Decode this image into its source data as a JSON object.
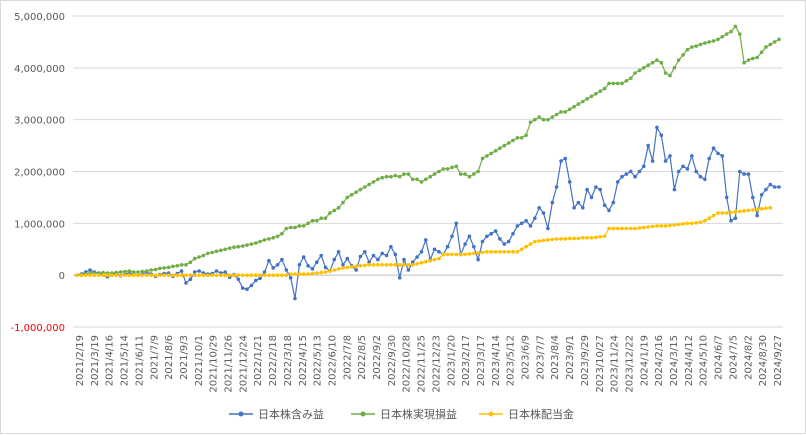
{
  "chart_data": {
    "type": "line",
    "title": "",
    "xlabel": "",
    "ylabel": "",
    "ylim": [
      -1000000,
      5000000
    ],
    "y_ticks": [
      {
        "value": 5000000,
        "label": "5,000,000"
      },
      {
        "value": 4000000,
        "label": "4,000,000"
      },
      {
        "value": 3000000,
        "label": "3,000,000"
      },
      {
        "value": 2000000,
        "label": "2,000,000"
      },
      {
        "value": 1000000,
        "label": "1,000,000"
      },
      {
        "value": 0,
        "label": "0"
      },
      {
        "value": -1000000,
        "label": "-1,000,000"
      }
    ],
    "x_ticks": [
      "2021/2/19",
      "2021/3/19",
      "2021/4/16",
      "2021/5/14",
      "2021/6/11",
      "2021/7/9",
      "2021/8/6",
      "2021/9/3",
      "2021/10/1",
      "2021/10/29",
      "2021/11/26",
      "2021/12/24",
      "2022/1/21",
      "2022/2/18",
      "2022/3/18",
      "2022/4/15",
      "2022/5/13",
      "2022/6/10",
      "2022/7/8",
      "2022/8/5",
      "2022/9/2",
      "2022/9/30",
      "2022/10/28",
      "2022/11/25",
      "2022/12/23",
      "2023/1/20",
      "2023/2/17",
      "2023/3/17",
      "2023/4/14",
      "2023/5/12",
      "2023/6/9",
      "2023/7/7",
      "2023/8/4",
      "2023/9/1",
      "2023/9/29",
      "2023/10/27",
      "2023/11/24",
      "2023/12/22",
      "2024/1/19",
      "2024/2/16",
      "2024/3/15",
      "2024/4/12",
      "2024/5/10",
      "2024/6/7",
      "2024/7/5",
      "2024/8/2",
      "2024/8/30",
      "2024/9/27"
    ],
    "grid": true,
    "legend_position": "bottom",
    "series": [
      {
        "name": "日本株含み益",
        "color": "#4472c4",
        "values": [
          0,
          20000,
          60000,
          100000,
          60000,
          40000,
          0,
          -30000,
          10000,
          30000,
          -10000,
          20000,
          40000,
          10000,
          0,
          20000,
          60000,
          20000,
          -20000,
          10000,
          30000,
          40000,
          -20000,
          30000,
          80000,
          -150000,
          -80000,
          60000,
          80000,
          40000,
          20000,
          30000,
          80000,
          40000,
          60000,
          -40000,
          10000,
          -80000,
          -250000,
          -270000,
          -200000,
          -100000,
          -60000,
          60000,
          280000,
          140000,
          200000,
          300000,
          100000,
          -50000,
          -450000,
          200000,
          350000,
          180000,
          120000,
          250000,
          380000,
          150000,
          80000,
          300000,
          450000,
          200000,
          320000,
          180000,
          100000,
          360000,
          450000,
          250000,
          380000,
          300000,
          420000,
          380000,
          550000,
          400000,
          -50000,
          300000,
          100000,
          250000,
          350000,
          450000,
          680000,
          300000,
          500000,
          450000,
          400000,
          550000,
          750000,
          1000000,
          400000,
          600000,
          750000,
          550000,
          300000,
          650000,
          750000,
          800000,
          850000,
          700000,
          600000,
          650000,
          800000,
          950000,
          1000000,
          1050000,
          950000,
          1100000,
          1300000,
          1200000,
          900000,
          1400000,
          1700000,
          2200000,
          2250000,
          1800000,
          1300000,
          1400000,
          1300000,
          1650000,
          1500000,
          1700000,
          1650000,
          1350000,
          1250000,
          1400000,
          1800000,
          1900000,
          1950000,
          2000000,
          1900000,
          2000000,
          2100000,
          2500000,
          2200000,
          2850000,
          2700000,
          2200000,
          2300000,
          1650000,
          2000000,
          2100000,
          2050000,
          2300000,
          2000000,
          1900000,
          1850000,
          2250000,
          2450000,
          2350000,
          2300000,
          1500000,
          1050000,
          1100000,
          2000000,
          1950000,
          1950000,
          1500000,
          1150000,
          1550000,
          1650000,
          1750000,
          1700000,
          1700000
        ]
      },
      {
        "name": "日本株実現損益",
        "color": "#70ad47",
        "values": [
          0,
          0,
          20000,
          40000,
          40000,
          40000,
          50000,
          40000,
          40000,
          50000,
          60000,
          70000,
          80000,
          60000,
          60000,
          70000,
          80000,
          100000,
          110000,
          130000,
          140000,
          150000,
          170000,
          180000,
          200000,
          200000,
          250000,
          320000,
          350000,
          380000,
          420000,
          440000,
          460000,
          480000,
          500000,
          520000,
          540000,
          550000,
          560000,
          580000,
          600000,
          620000,
          650000,
          680000,
          700000,
          720000,
          750000,
          800000,
          900000,
          920000,
          920000,
          950000,
          950000,
          1000000,
          1050000,
          1050000,
          1100000,
          1100000,
          1200000,
          1250000,
          1300000,
          1400000,
          1500000,
          1550000,
          1600000,
          1650000,
          1700000,
          1750000,
          1800000,
          1850000,
          1880000,
          1900000,
          1900000,
          1920000,
          1900000,
          1950000,
          1950000,
          1850000,
          1850000,
          1800000,
          1850000,
          1900000,
          1950000,
          2000000,
          2050000,
          2050000,
          2080000,
          2100000,
          1950000,
          1950000,
          1900000,
          1950000,
          2000000,
          2250000,
          2300000,
          2350000,
          2400000,
          2450000,
          2500000,
          2550000,
          2600000,
          2650000,
          2650000,
          2700000,
          2950000,
          3000000,
          3050000,
          3000000,
          3000000,
          3050000,
          3100000,
          3150000,
          3150000,
          3200000,
          3250000,
          3300000,
          3350000,
          3400000,
          3450000,
          3500000,
          3550000,
          3600000,
          3700000,
          3700000,
          3700000,
          3700000,
          3750000,
          3800000,
          3900000,
          3950000,
          4000000,
          4050000,
          4100000,
          4150000,
          4100000,
          3900000,
          3850000,
          4000000,
          4150000,
          4250000,
          4350000,
          4400000,
          4420000,
          4450000,
          4480000,
          4500000,
          4520000,
          4550000,
          4600000,
          4650000,
          4700000,
          4800000,
          4650000,
          4100000,
          4150000,
          4180000,
          4200000,
          4300000,
          4400000,
          4450000,
          4500000,
          4550000
        ]
      },
      {
        "name": "日本株配当金",
        "color": "#ffc000",
        "values": [
          0,
          0,
          0,
          0,
          0,
          0,
          0,
          0,
          0,
          0,
          0,
          0,
          0,
          0,
          0,
          0,
          0,
          0,
          0,
          0,
          0,
          0,
          0,
          0,
          0,
          0,
          0,
          0,
          0,
          0,
          0,
          0,
          0,
          0,
          0,
          0,
          0,
          0,
          0,
          0,
          0,
          0,
          0,
          0,
          0,
          0,
          0,
          0,
          0,
          20000,
          20000,
          20000,
          20000,
          20000,
          30000,
          40000,
          50000,
          60000,
          80000,
          100000,
          120000,
          140000,
          150000,
          160000,
          170000,
          180000,
          190000,
          200000,
          200000,
          200000,
          200000,
          200000,
          200000,
          200000,
          200000,
          200000,
          200000,
          200000,
          220000,
          240000,
          260000,
          280000,
          300000,
          320000,
          400000,
          400000,
          400000,
          400000,
          400000,
          400000,
          410000,
          420000,
          430000,
          440000,
          450000,
          450000,
          450000,
          450000,
          450000,
          450000,
          450000,
          450000,
          500000,
          550000,
          600000,
          650000,
          660000,
          670000,
          680000,
          690000,
          700000,
          700000,
          700000,
          710000,
          710000,
          710000,
          720000,
          720000,
          720000,
          730000,
          740000,
          750000,
          900000,
          900000,
          900000,
          900000,
          900000,
          900000,
          900000,
          910000,
          920000,
          930000,
          940000,
          950000,
          950000,
          950000,
          960000,
          970000,
          980000,
          990000,
          1000000,
          1000000,
          1010000,
          1020000,
          1050000,
          1100000,
          1150000,
          1200000,
          1200000,
          1200000,
          1210000,
          1220000,
          1230000,
          1240000,
          1250000,
          1260000,
          1270000,
          1280000,
          1290000,
          1300000
        ]
      }
    ]
  }
}
